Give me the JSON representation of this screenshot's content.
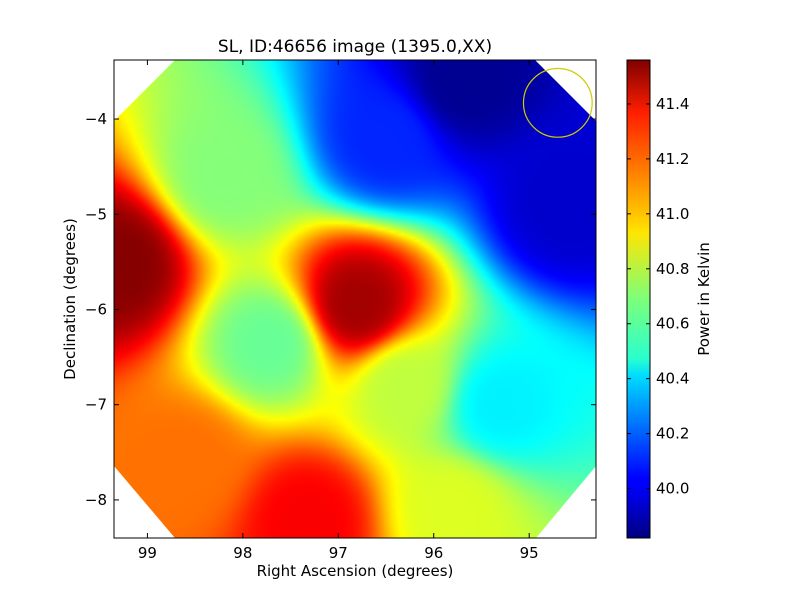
{
  "chart_data": {
    "type": "heatmap",
    "title": "SL, ID:46656 image (1395.0,XX)",
    "xlabel": "Right Ascension (degrees)",
    "ylabel": "Declination (degrees)",
    "colorbar_label": "Power in Kelvin",
    "xlim": [
      99.35,
      94.3
    ],
    "ylim": [
      -8.4,
      -3.38
    ],
    "x_ticks": [
      {
        "value": 99,
        "label": "99"
      },
      {
        "value": 98,
        "label": "98"
      },
      {
        "value": 97,
        "label": "97"
      },
      {
        "value": 96,
        "label": "96"
      },
      {
        "value": 95,
        "label": "95"
      }
    ],
    "y_ticks": [
      {
        "value": -4,
        "label": "−4"
      },
      {
        "value": -5,
        "label": "−5"
      },
      {
        "value": -6,
        "label": "−6"
      },
      {
        "value": -7,
        "label": "−7"
      },
      {
        "value": -8,
        "label": "−8"
      }
    ],
    "colorbar": {
      "range": [
        39.82,
        41.56
      ],
      "colormap": "jet",
      "ticks": [
        {
          "value": 40.0,
          "label": "40.0"
        },
        {
          "value": 40.2,
          "label": "40.2"
        },
        {
          "value": 40.4,
          "label": "40.4"
        },
        {
          "value": 40.6,
          "label": "40.6"
        },
        {
          "value": 40.8,
          "label": "40.8"
        },
        {
          "value": 41.0,
          "label": "41.0"
        },
        {
          "value": 41.2,
          "label": "41.2"
        },
        {
          "value": 41.4,
          "label": "41.4"
        }
      ]
    },
    "field_samples": [
      {
        "ra": 99.3,
        "dec": -5.5,
        "value": 41.55
      },
      {
        "ra": 96.8,
        "dec": -5.95,
        "value": 41.5
      },
      {
        "ra": 97.7,
        "dec": -6.35,
        "value": 40.65
      },
      {
        "ra": 97.3,
        "dec": -8.2,
        "value": 41.35
      },
      {
        "ra": 98.6,
        "dec": -7.6,
        "value": 41.15
      },
      {
        "ra": 98.2,
        "dec": -4.6,
        "value": 40.7
      },
      {
        "ra": 96.5,
        "dec": -4.2,
        "value": 40.1
      },
      {
        "ra": 95.7,
        "dec": -3.6,
        "value": 39.85
      },
      {
        "ra": 94.6,
        "dec": -4.9,
        "value": 39.95
      },
      {
        "ra": 95.3,
        "dec": -7.0,
        "value": 40.45
      },
      {
        "ra": 95.8,
        "dec": -8.1,
        "value": 40.85
      },
      {
        "ra": 96.3,
        "dec": -6.8,
        "value": 40.8
      }
    ],
    "beam_circle": {
      "ra": 94.7,
      "dec": -3.83,
      "radius_deg": 0.36,
      "color": "#cccc00"
    },
    "grid": false,
    "colors": {
      "axis": "#000000",
      "background": "#ffffff",
      "beam": "#cccc00"
    }
  }
}
